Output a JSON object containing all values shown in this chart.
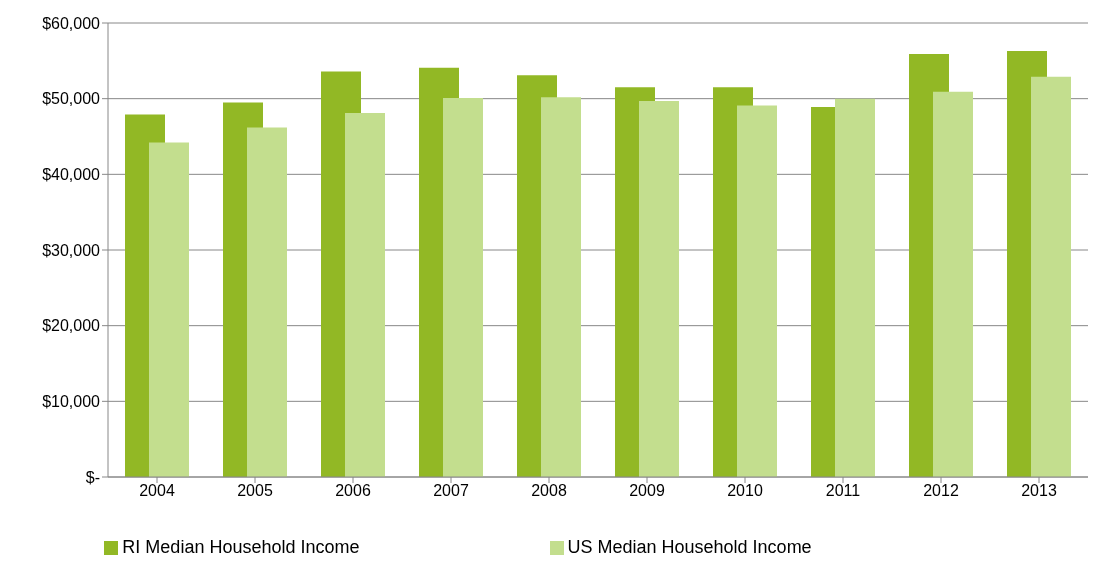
{
  "chart_data": {
    "type": "bar",
    "categories": [
      "2004",
      "2005",
      "2006",
      "2007",
      "2008",
      "2009",
      "2010",
      "2011",
      "2012",
      "2013"
    ],
    "series": [
      {
        "name": "RI Median Household Income",
        "color": "#92b825",
        "values": [
          47900,
          49500,
          53600,
          54100,
          53100,
          51500,
          51500,
          48900,
          55900,
          56300
        ]
      },
      {
        "name": "US Median Household Income",
        "color": "#c3de8e",
        "values": [
          44200,
          46200,
          48100,
          50100,
          50200,
          49700,
          49100,
          50000,
          50900,
          52900
        ]
      }
    ],
    "ylim": [
      0,
      60000
    ],
    "yticks": [
      {
        "value": 0,
        "label": "$-"
      },
      {
        "value": 10000,
        "label": "$10,000"
      },
      {
        "value": 20000,
        "label": "$20,000"
      },
      {
        "value": 30000,
        "label": "$30,000"
      },
      {
        "value": 40000,
        "label": "$40,000"
      },
      {
        "value": 50000,
        "label": "$50,000"
      },
      {
        "value": 60000,
        "label": "$60,000"
      }
    ],
    "grid": "y",
    "legend": "bottom"
  }
}
